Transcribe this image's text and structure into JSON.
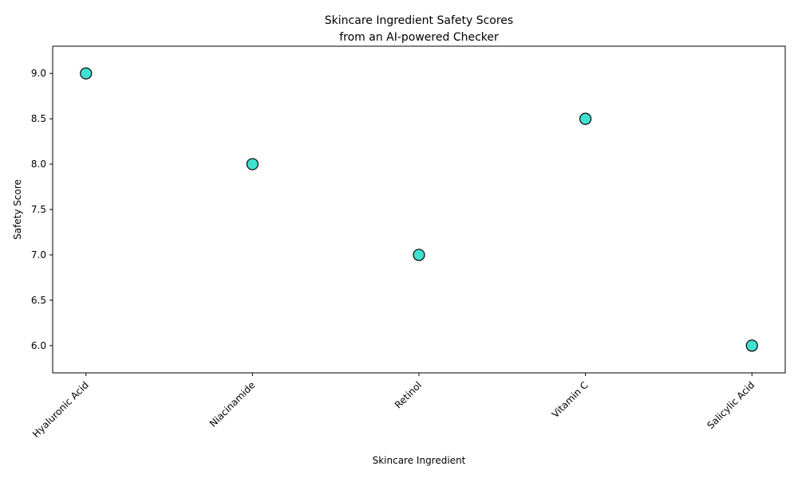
{
  "chart_data": {
    "type": "scatter",
    "title_line1": "Skincare Ingredient Safety Scores",
    "title_line2": "from an AI-powered Checker",
    "xlabel": "Skincare Ingredient",
    "ylabel": "Safety Score",
    "categories": [
      "Hyaluronic Acid",
      "Niacinamide",
      "Retinol",
      "Vitamin C",
      "Salicylic Acid"
    ],
    "values": [
      9.0,
      8.0,
      7.0,
      8.5,
      6.0
    ],
    "ylim": [
      5.7,
      9.3
    ],
    "yticks": [
      "6.0",
      "6.5",
      "7.0",
      "7.5",
      "8.0",
      "8.5",
      "9.0"
    ],
    "grid": false,
    "marker_color": "#40e0d0",
    "marker_edge_color": "#000000"
  }
}
